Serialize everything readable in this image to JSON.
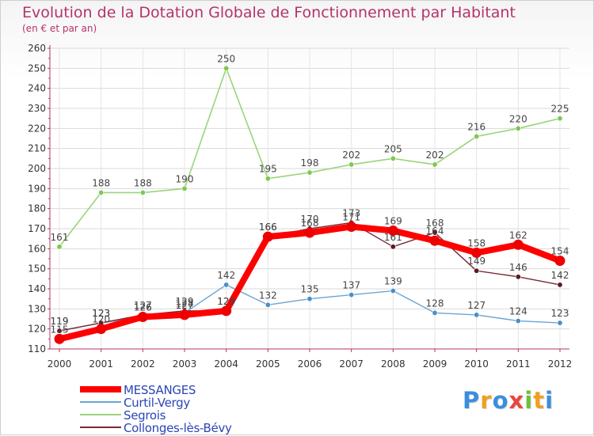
{
  "header": {
    "title": "Evolution de la Dotation Globale de Fonctionnement par Habitant",
    "subtitle": "(en € et par an)"
  },
  "logo": {
    "letters": [
      "P",
      "r",
      "o",
      "x",
      "i",
      "t",
      "i"
    ],
    "colors": [
      "#3b8ede",
      "#f0a020",
      "#3b8ede",
      "#e8483c",
      "#6cbf3c",
      "#f0a020",
      "#3b8ede"
    ]
  },
  "chart_data": {
    "type": "line",
    "title": "Evolution de la Dotation Globale de Fonctionnement par Habitant",
    "subtitle": "(en € et par an)",
    "xlabel": "",
    "ylabel": "",
    "ylim": [
      110,
      260
    ],
    "yticks": [
      110,
      120,
      130,
      140,
      150,
      160,
      170,
      180,
      190,
      200,
      210,
      220,
      230,
      240,
      250,
      260
    ],
    "x": [
      "2000",
      "2001",
      "2002",
      "2003",
      "2004",
      "2005",
      "2006",
      "2007",
      "2008",
      "2009",
      "2010",
      "2011",
      "2012"
    ],
    "grid": true,
    "legend_position": "bottom-left",
    "series": [
      {
        "name": "Segrois",
        "color": "#99d57a",
        "marker": "#7ec850",
        "values": [
          161,
          188,
          188,
          190,
          250,
          195,
          198,
          202,
          205,
          202,
          216,
          220,
          225
        ],
        "labels": [
          "161",
          "188",
          "188",
          "190",
          "250",
          "195",
          "198",
          "202",
          "205",
          "202",
          "216",
          "220",
          "225"
        ]
      },
      {
        "name": "Curtil-Vergy",
        "color": "#6aa5d4",
        "marker": "#4a8fc9",
        "values": [
          119,
          123,
          126,
          128,
          142,
          132,
          135,
          137,
          139,
          128,
          127,
          124,
          123
        ],
        "labels": [
          "119",
          "123",
          "126",
          "128",
          "142",
          "132",
          "135",
          "137",
          "139",
          "128",
          "127",
          "124",
          "123"
        ]
      },
      {
        "name": "Collonges-lès-Bévy",
        "color": "#7a2a36",
        "marker": "#5a1a24",
        "values": [
          119,
          123,
          127,
          129,
          129,
          166,
          170,
          173,
          161,
          168,
          149,
          146,
          142
        ],
        "labels": [
          "119",
          "123",
          "127",
          "129",
          "129",
          "166",
          "170",
          "173",
          "161",
          "168",
          "149",
          "146",
          "142"
        ]
      },
      {
        "name": "MESSANGES",
        "color": "#ff0000",
        "marker": "#ee0000",
        "values": [
          115,
          120,
          126,
          127,
          129,
          166,
          168,
          171,
          169,
          164,
          158,
          162,
          154
        ],
        "labels": [
          "115",
          "120",
          "126",
          "127",
          "129",
          "166",
          "168",
          "171",
          "169",
          "164",
          "158",
          "162",
          "154"
        ]
      }
    ]
  },
  "legend": {
    "items": [
      {
        "label": "MESSANGES",
        "color": "#ff0000"
      },
      {
        "label": "Curtil-Vergy",
        "color": "#6aa5d4"
      },
      {
        "label": "Segrois",
        "color": "#99d57a"
      },
      {
        "label": "Collonges-lès-Bévy",
        "color": "#7a2a36"
      }
    ]
  }
}
